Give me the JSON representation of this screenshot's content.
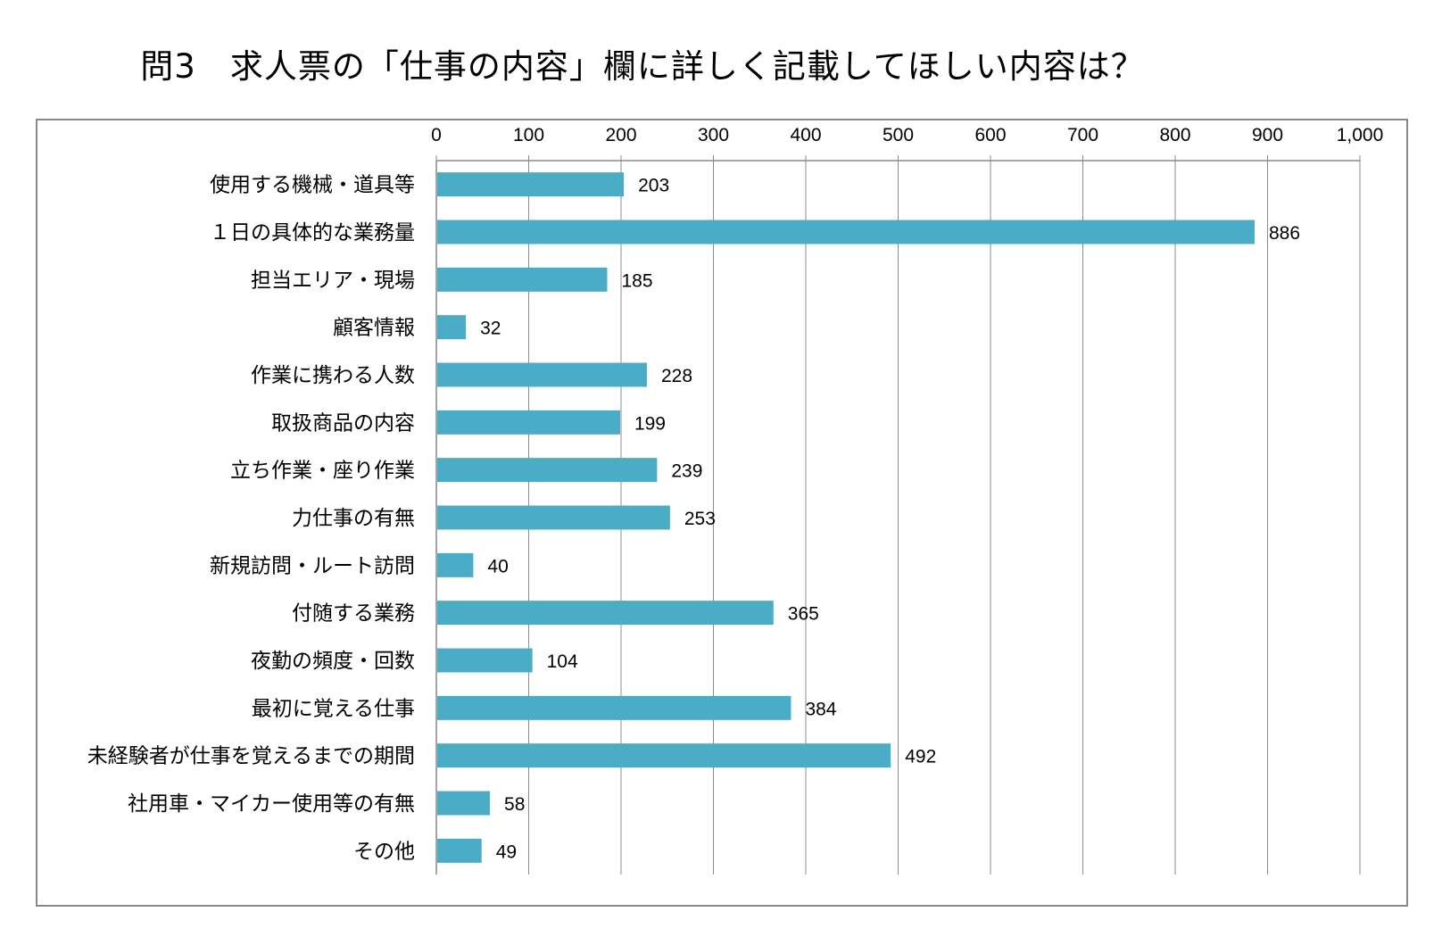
{
  "title": "問3　求人票の「仕事の内容」欄に詳しく記載してほしい内容は？",
  "chart_data": {
    "type": "bar",
    "orientation": "horizontal",
    "title": "問3　求人票の「仕事の内容」欄に詳しく記載してほしい内容は？",
    "xlim": [
      0,
      1000
    ],
    "x_ticks": [
      "0",
      "100",
      "200",
      "300",
      "400",
      "500",
      "600",
      "700",
      "800",
      "900",
      "1,000"
    ],
    "x_tick_values": [
      0,
      100,
      200,
      300,
      400,
      500,
      600,
      700,
      800,
      900,
      1000
    ],
    "axis_position": "top",
    "grid": true,
    "bar_color": "#4BACC6",
    "categories": [
      "使用する機械・道具等",
      "１日の具体的な業務量",
      "担当エリア・現場",
      "顧客情報",
      "作業に携わる人数",
      "取扱商品の内容",
      "立ち作業・座り作業",
      "力仕事の有無",
      "新規訪問・ルート訪問",
      "付随する業務",
      "夜勤の頻度・回数",
      "最初に覚える仕事",
      "未経験者が仕事を覚えるまでの期間",
      "社用車・マイカー使用等の有無",
      "その他"
    ],
    "values": [
      203,
      886,
      185,
      32,
      228,
      199,
      239,
      253,
      40,
      365,
      104,
      384,
      492,
      58,
      49
    ]
  }
}
